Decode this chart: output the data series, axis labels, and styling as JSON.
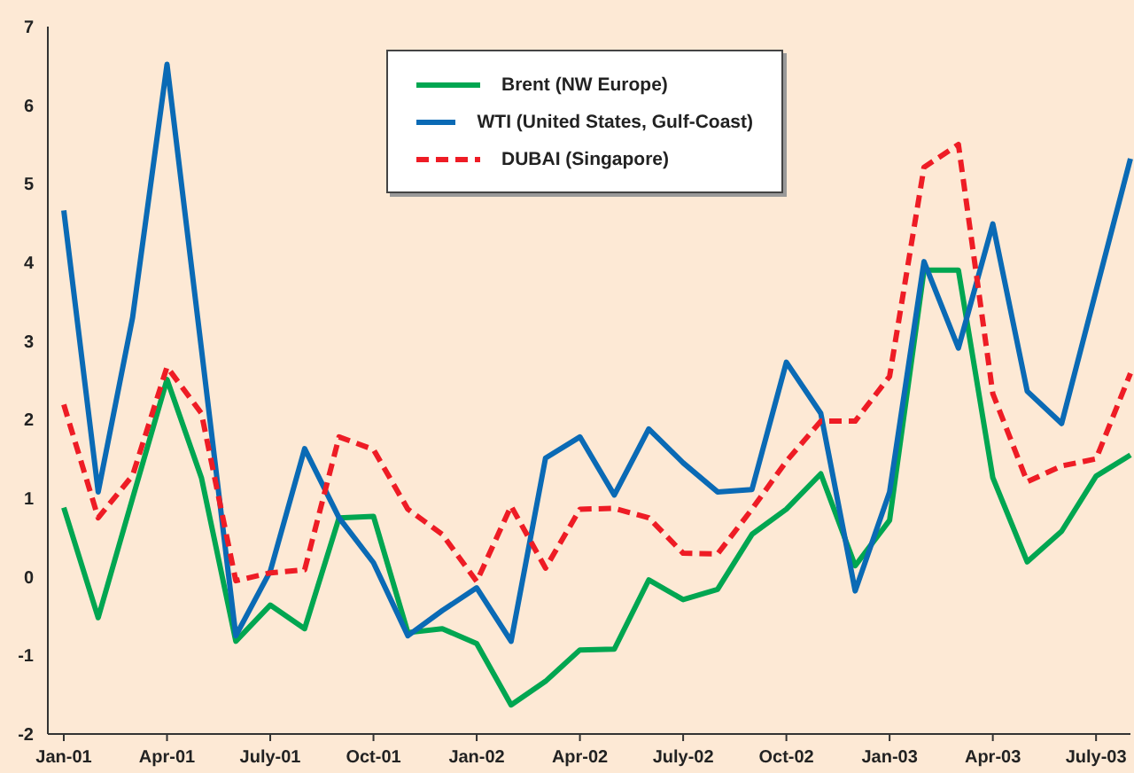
{
  "chart_data": {
    "type": "line",
    "categories": [
      "Jan-01",
      null,
      null,
      "Apr-01",
      null,
      null,
      "July-01",
      null,
      null,
      "Oct-01",
      null,
      null,
      "Jan-02",
      null,
      null,
      "Apr-02",
      null,
      null,
      "July-02",
      null,
      null,
      "Oct-02",
      null,
      null,
      "Jan-03",
      null,
      null,
      "Apr-03",
      null,
      null,
      "July-03",
      null
    ],
    "series": [
      {
        "name": "Brent (NW Europe)",
        "color": "#00a651",
        "line_style": "solid",
        "values": [
          0.88,
          -0.52,
          1.0,
          2.51,
          1.26,
          -0.82,
          -0.36,
          -0.66,
          0.75,
          0.77,
          -0.71,
          -0.66,
          -0.85,
          -1.63,
          -1.33,
          -0.93,
          -0.92,
          -0.04,
          -0.29,
          -0.16,
          0.54,
          0.86,
          1.31,
          0.14,
          0.72,
          3.9,
          3.9,
          1.26,
          0.19,
          0.58,
          1.28,
          1.55
        ]
      },
      {
        "name": "WTI (United States, Gulf-Coast)",
        "color": "#0a6ab5",
        "line_style": "solid",
        "values": [
          4.66,
          1.08,
          3.3,
          6.52,
          2.9,
          -0.75,
          0.07,
          1.63,
          0.75,
          0.18,
          -0.75,
          -0.43,
          -0.14,
          -0.82,
          1.51,
          1.78,
          1.04,
          1.88,
          1.45,
          1.08,
          1.11,
          2.73,
          2.08,
          -0.18,
          1.08,
          4.01,
          2.91,
          4.49,
          2.36,
          1.95,
          3.64,
          5.32
        ]
      },
      {
        "name": "DUBAI (Singapore)",
        "color": "#ee1c25",
        "line_style": "dashed",
        "values": [
          2.19,
          0.75,
          1.29,
          2.67,
          2.08,
          -0.05,
          0.05,
          0.09,
          1.78,
          1.62,
          0.86,
          0.54,
          -0.06,
          0.9,
          0.11,
          0.86,
          0.87,
          0.75,
          0.3,
          0.29,
          0.86,
          1.47,
          1.98,
          1.98,
          2.55,
          5.21,
          5.5,
          2.33,
          1.21,
          1.41,
          1.5,
          2.59
        ]
      }
    ],
    "ylim": [
      -2,
      7
    ],
    "yticks": [
      -2,
      -1,
      0,
      1,
      2,
      3,
      4,
      5,
      6,
      7
    ],
    "grid": false,
    "legend": "top",
    "marker": "none"
  }
}
